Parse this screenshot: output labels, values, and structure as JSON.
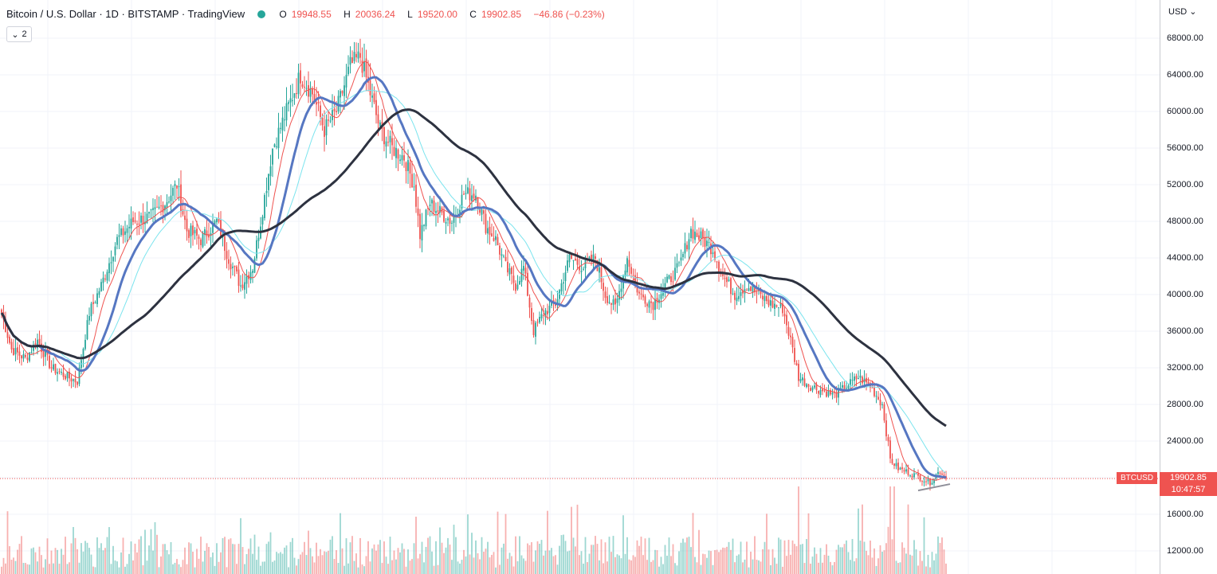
{
  "legend": {
    "title": "Bitcoin / U.S. Dollar · 1D · BITSTAMP · TradingView",
    "open_key": "O",
    "open": "19948.55",
    "high_key": "H",
    "high": "20036.24",
    "low_key": "L",
    "low": "19520.00",
    "close_key": "C",
    "close": "19902.85",
    "change": "−46.86 (−0.23%)"
  },
  "indicator_toggle": {
    "count": "2"
  },
  "currency": "USD",
  "symbol_tag": "BTCUSD",
  "last_price": "19902.85",
  "countdown": "10:47:57",
  "colors": {
    "up": "#26a69a",
    "down": "#ef5350",
    "ma_fast": "#ef5350",
    "ma_mid": "#5677c2",
    "ma_cyan": "#7be4ee",
    "ma_slow": "#2d3240",
    "trendline": "#8f8f99"
  },
  "chart_data": {
    "type": "candlestick",
    "title": "Bitcoin / U.S. Dollar · 1D · BITSTAMP · TradingView",
    "price_axis": {
      "min": 12000,
      "max": 68000,
      "ticks": [
        12000,
        16000,
        20000,
        24000,
        28000,
        32000,
        36000,
        40000,
        44000,
        48000,
        52000,
        56000,
        60000,
        64000,
        68000
      ]
    },
    "price_tick_labels": [
      "12000.00",
      "16000.00",
      "20000.00",
      "24000.00",
      "28000.00",
      "32000.00",
      "36000.00",
      "40000.00",
      "44000.00",
      "48000.00",
      "52000.00",
      "56000.00",
      "60000.00",
      "64000.00",
      "68000.00"
    ],
    "grid": true,
    "last_close": 19902.85,
    "series_anchor_points_close": [
      [
        0,
        38000
      ],
      [
        5,
        34000
      ],
      [
        12,
        33000
      ],
      [
        18,
        35000
      ],
      [
        25,
        32000
      ],
      [
        33,
        31000
      ],
      [
        38,
        30500
      ],
      [
        44,
        38000
      ],
      [
        50,
        41000
      ],
      [
        58,
        46000
      ],
      [
        66,
        48000
      ],
      [
        75,
        48500
      ],
      [
        82,
        50000
      ],
      [
        88,
        52000
      ],
      [
        93,
        47000
      ],
      [
        100,
        46000
      ],
      [
        108,
        48000
      ],
      [
        114,
        44000
      ],
      [
        120,
        41000
      ],
      [
        126,
        43000
      ],
      [
        130,
        48000
      ],
      [
        136,
        56000
      ],
      [
        143,
        60000
      ],
      [
        150,
        64000
      ],
      [
        156,
        62000
      ],
      [
        162,
        58000
      ],
      [
        168,
        60000
      ],
      [
        175,
        65000
      ],
      [
        180,
        66000
      ],
      [
        185,
        62000
      ],
      [
        190,
        58000
      ],
      [
        196,
        56000
      ],
      [
        202,
        55000
      ],
      [
        207,
        52000
      ],
      [
        210,
        46500
      ],
      [
        215,
        50000
      ],
      [
        220,
        49000
      ],
      [
        226,
        48000
      ],
      [
        232,
        51000
      ],
      [
        238,
        51000
      ],
      [
        243,
        47500
      ],
      [
        248,
        46000
      ],
      [
        253,
        43000
      ],
      [
        258,
        41000
      ],
      [
        262,
        43000
      ],
      [
        267,
        36000
      ],
      [
        272,
        38000
      ],
      [
        278,
        39000
      ],
      [
        285,
        44000
      ],
      [
        292,
        43000
      ],
      [
        298,
        44000
      ],
      [
        303,
        40000
      ],
      [
        308,
        38500
      ],
      [
        314,
        44000
      ],
      [
        320,
        40000
      ],
      [
        327,
        39000
      ],
      [
        333,
        41000
      ],
      [
        340,
        43000
      ],
      [
        346,
        47000
      ],
      [
        352,
        46000
      ],
      [
        357,
        45000
      ],
      [
        362,
        42000
      ],
      [
        368,
        40000
      ],
      [
        374,
        41000
      ],
      [
        380,
        40000
      ],
      [
        386,
        39000
      ],
      [
        392,
        38500
      ],
      [
        396,
        35000
      ],
      [
        400,
        31000
      ],
      [
        406,
        30000
      ],
      [
        412,
        29500
      ],
      [
        418,
        29000
      ],
      [
        424,
        30000
      ],
      [
        430,
        31000
      ],
      [
        436,
        30000
      ],
      [
        442,
        28000
      ],
      [
        446,
        22000
      ],
      [
        450,
        21000
      ],
      [
        456,
        20500
      ],
      [
        461,
        20000
      ],
      [
        466,
        19500
      ],
      [
        471,
        20800
      ],
      [
        474,
        19902.85
      ]
    ],
    "volume_axis_note": "volume bars at bottom, colored by candle direction",
    "moving_averages": [
      {
        "color": "#ef5350",
        "width": 1
      },
      {
        "color": "#7be4ee",
        "width": 1
      },
      {
        "color": "#5677c2",
        "width": 3
      },
      {
        "color": "#2d3240",
        "width": 3
      }
    ]
  }
}
